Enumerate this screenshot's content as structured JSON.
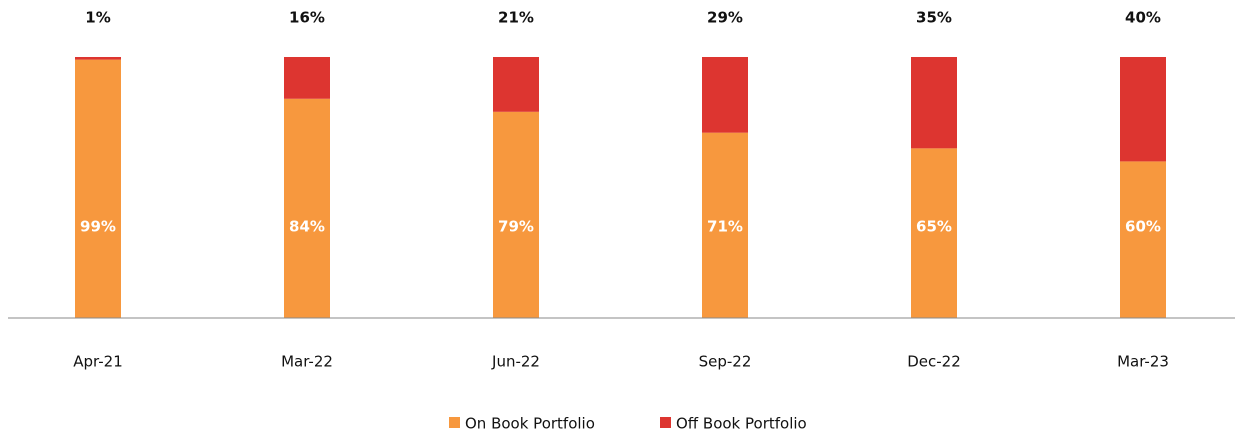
{
  "chart_data": {
    "type": "bar",
    "stacked": true,
    "categories": [
      "Apr-21",
      "Mar-22",
      "Jun-22",
      "Sep-22",
      "Dec-22",
      "Mar-23"
    ],
    "series": [
      {
        "name": "On Book Portfolio",
        "color": "#f7983e",
        "values": [
          99,
          84,
          79,
          71,
          65,
          60
        ],
        "value_labels": [
          "99%",
          "84%",
          "79%",
          "71%",
          "65%",
          "60%"
        ]
      },
      {
        "name": "Off Book Portfolio",
        "color": "#dd3530",
        "values": [
          1,
          16,
          21,
          29,
          35,
          40
        ],
        "value_labels": [
          "1%",
          "16%",
          "21%",
          "29%",
          "35%",
          "40%"
        ]
      }
    ],
    "ylim": [
      0,
      100
    ]
  }
}
